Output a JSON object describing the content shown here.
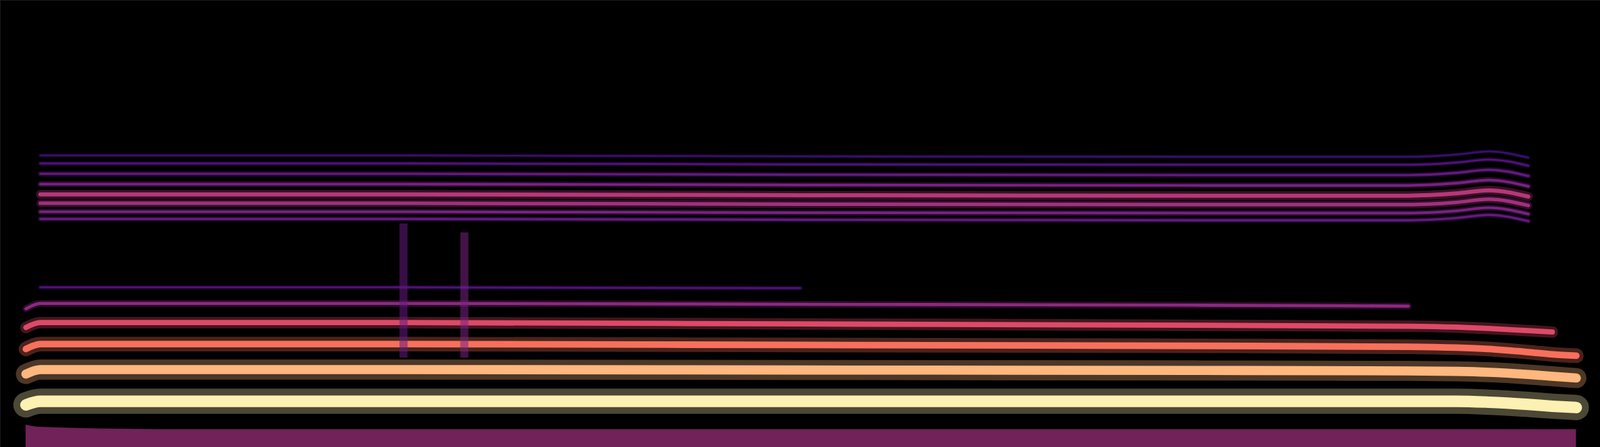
{
  "chart_data": {
    "type": "spectrogram",
    "tick_labels": false,
    "xlim": [
      0,
      100
    ],
    "ylim": [
      0,
      100
    ],
    "zlim": [
      0,
      1
    ],
    "x": [
      1.6,
      2.5,
      10,
      25,
      50,
      75,
      88,
      91,
      93,
      95.5,
      97,
      98.5
    ],
    "series": [
      {
        "type": "area",
        "intensity": 0.45,
        "values": [
          5,
          4.5,
          4,
          4,
          4,
          4,
          4,
          4,
          4,
          4,
          4,
          4
        ]
      },
      {
        "intensity": 0.97,
        "values": [
          9.5,
          10.3,
          10.3,
          10.3,
          10.3,
          10.3,
          10.3,
          10.3,
          10.1,
          9.6,
          9.2,
          8.9
        ]
      },
      {
        "intensity": 0.85,
        "values": [
          16.4,
          17.4,
          17.4,
          17.4,
          17.3,
          17.2,
          17.1,
          17.0,
          16.8,
          16.3,
          15.9,
          15.5
        ]
      },
      {
        "intensity": 0.7,
        "values": [
          22.0,
          23.1,
          23.1,
          23.1,
          22.9,
          22.7,
          22.5,
          22.3,
          22.0,
          21.3,
          20.8,
          20.5
        ]
      },
      {
        "intensity": 0.6,
        "values": [
          26.8,
          27.9,
          27.9,
          27.9,
          27.6,
          27.3,
          27.1,
          26.9,
          26.6,
          26.1,
          25.8,
          null
        ]
      },
      {
        "intensity": 0.4,
        "values": [
          31.0,
          32.2,
          32.2,
          32.2,
          32.0,
          31.8,
          31.6,
          null,
          null,
          null,
          null,
          null
        ]
      },
      {
        "intensity": 0.25,
        "values": [
          null,
          35.8,
          35.8,
          35.8,
          35.6,
          null,
          null,
          null,
          null,
          null,
          null,
          null
        ]
      },
      {
        "intensity": 0.3,
        "values": [
          null,
          51.1,
          51.1,
          51.1,
          50.9,
          50.8,
          50.8,
          51.3,
          52.0,
          50.6,
          null,
          null
        ]
      },
      {
        "intensity": 0.35,
        "values": [
          null,
          52.7,
          52.7,
          52.7,
          52.5,
          52.4,
          52.4,
          52.9,
          53.6,
          52.2,
          null,
          null
        ]
      },
      {
        "intensity": 0.45,
        "values": [
          null,
          54.6,
          54.6,
          54.6,
          54.4,
          54.3,
          54.3,
          54.8,
          55.5,
          54.1,
          null,
          null
        ]
      },
      {
        "intensity": 0.5,
        "values": [
          null,
          56.6,
          56.6,
          56.6,
          56.4,
          56.3,
          56.3,
          56.8,
          57.5,
          56.1,
          null,
          null
        ]
      },
      {
        "intensity": 0.35,
        "values": [
          null,
          58.9,
          58.9,
          58.9,
          58.7,
          58.6,
          58.6,
          59.1,
          59.8,
          58.4,
          null,
          null
        ]
      },
      {
        "intensity": 0.3,
        "values": [
          null,
          61.2,
          61.2,
          61.2,
          61.0,
          60.9,
          60.9,
          61.4,
          62.1,
          60.7,
          null,
          null
        ]
      },
      {
        "intensity": 0.25,
        "values": [
          null,
          63.5,
          63.5,
          63.5,
          63.3,
          63.2,
          63.2,
          63.7,
          64.4,
          63.0,
          null,
          null
        ]
      },
      {
        "intensity": 0.2,
        "values": [
          null,
          65.3,
          65.3,
          65.3,
          65.1,
          65.0,
          65.0,
          65.5,
          66.2,
          64.8,
          null,
          null
        ]
      }
    ],
    "transients": {
      "x": [
        25.2,
        29.0
      ],
      "ylo": [
        20,
        20
      ],
      "yhi": [
        50,
        48
      ],
      "intensity": [
        0.3,
        0.35
      ]
    }
  }
}
